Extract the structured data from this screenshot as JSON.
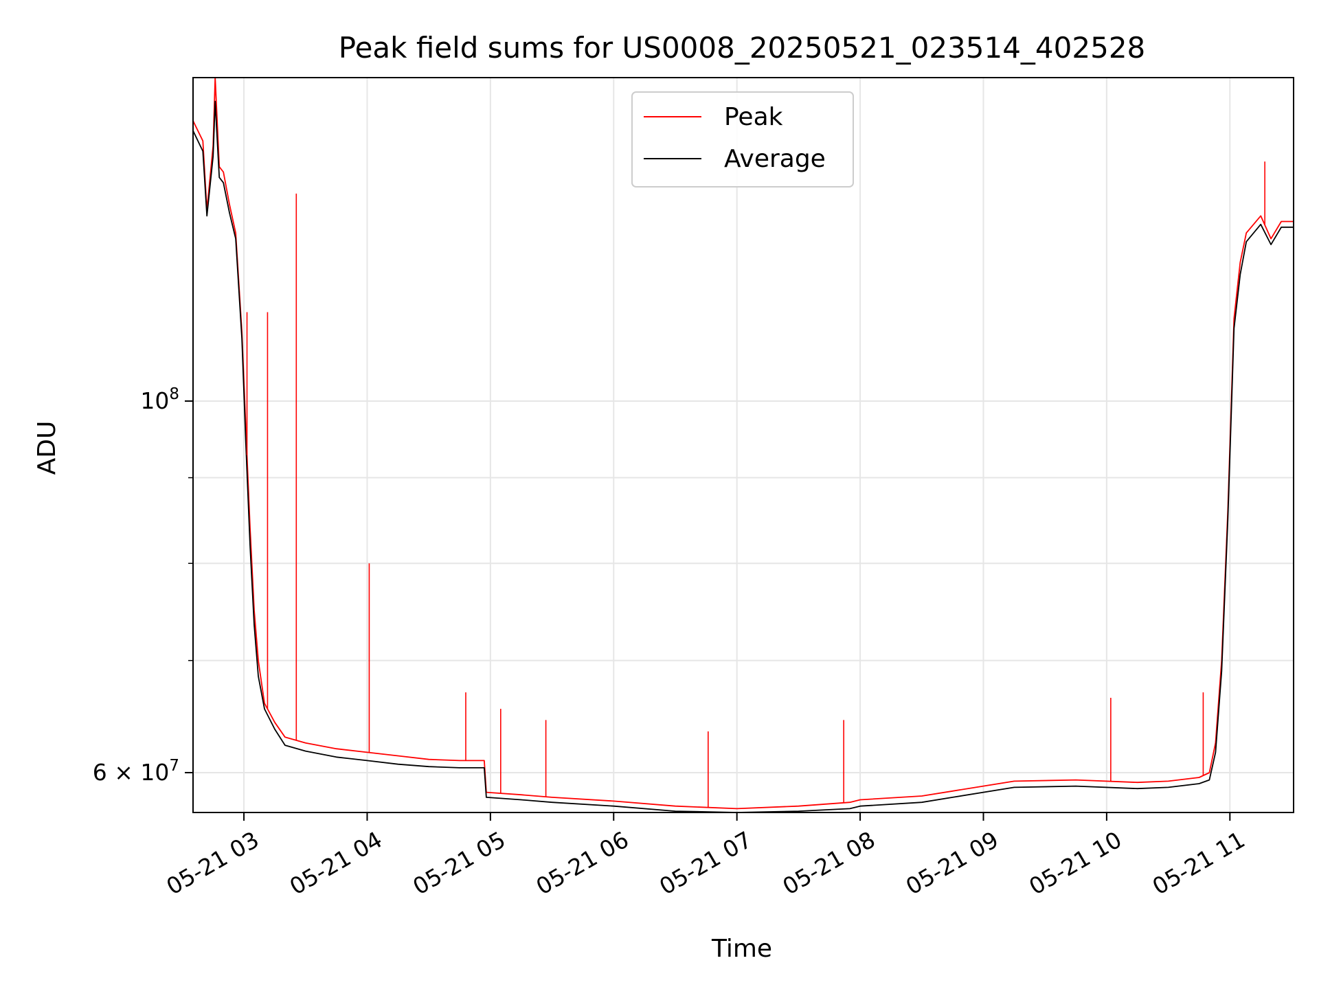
{
  "chart_data": {
    "type": "line",
    "title": "Peak field sums for US0008_20250521_023514_402528",
    "xlabel": "Time",
    "ylabel": "ADU",
    "x_axis_type": "datetime",
    "xlim": [
      "2025-05-21T02:35:14",
      "2025-05-21T11:31:00"
    ],
    "ylim": [
      56800000,
      156000000
    ],
    "yscale": "log",
    "grid": true,
    "legend_position": "top-center",
    "x_tick_labels": [
      {
        "value": "2025-05-21T03:00:00",
        "label": "05-21 03"
      },
      {
        "value": "2025-05-21T04:00:00",
        "label": "05-21 04"
      },
      {
        "value": "2025-05-21T05:00:00",
        "label": "05-21 05"
      },
      {
        "value": "2025-05-21T06:00:00",
        "label": "05-21 06"
      },
      {
        "value": "2025-05-21T07:00:00",
        "label": "05-21 07"
      },
      {
        "value": "2025-05-21T08:00:00",
        "label": "05-21 08"
      },
      {
        "value": "2025-05-21T09:00:00",
        "label": "05-21 09"
      },
      {
        "value": "2025-05-21T10:00:00",
        "label": "05-21 10"
      },
      {
        "value": "2025-05-21T11:00:00",
        "label": "05-21 11"
      }
    ],
    "y_major_ticks": [
      {
        "value": 60000000,
        "mantissa": "6",
        "times": "×",
        "base": "10",
        "exponent": "7"
      },
      {
        "value": 100000000,
        "mantissa": "",
        "times": "",
        "base": "10",
        "exponent": "8"
      }
    ],
    "y_minor_ticks": [
      70000000,
      80000000,
      90000000
    ],
    "series": [
      {
        "name": "Peak",
        "color": "#ff0000",
        "x": [
          "2025-05-21T02:35:14",
          "2025-05-21T02:40:00",
          "2025-05-21T02:42:00",
          "2025-05-21T02:45:00",
          "2025-05-21T02:46:00",
          "2025-05-21T02:48:00",
          "2025-05-21T02:50:00",
          "2025-05-21T02:53:00",
          "2025-05-21T02:56:00",
          "2025-05-21T02:59:00",
          "2025-05-21T03:01:00",
          "2025-05-21T03:03:00",
          "2025-05-21T03:05:00",
          "2025-05-21T03:07:00",
          "2025-05-21T03:10:00",
          "03:15",
          "03:20",
          "03:30",
          "03:45",
          "04:00",
          "04:15",
          "04:30",
          "04:45",
          "04:57",
          "04:58",
          "05:15",
          "05:30",
          "06:00",
          "06:30",
          "07:00",
          "07:30",
          "07:55",
          "08:00",
          "08:30",
          "08:45",
          "09:15",
          "09:45",
          "10:15",
          "10:30",
          "10:45",
          "10:50",
          "10:53",
          "10:56",
          "10:59",
          "11:02",
          "11:05",
          "11:08",
          "11:15",
          "11:20",
          "11:25",
          "11:31"
        ],
        "y": [
          147000000,
          143000000,
          130000000,
          142000000,
          156000000,
          138000000,
          137000000,
          131000000,
          126000000,
          110000000,
          96000000,
          84000000,
          75000000,
          70000000,
          66000000,
          64300000,
          63000000,
          62500000,
          62000000,
          61700000,
          61400000,
          61100000,
          61000000,
          61000000,
          58400000,
          58200000,
          58000000,
          57700000,
          57300000,
          57100000,
          57300000,
          57600000,
          57800000,
          58100000,
          58500000,
          59300000,
          59400000,
          59200000,
          59300000,
          59600000,
          60000000,
          62500000,
          70000000,
          86000000,
          112000000,
          121000000,
          126000000,
          129000000,
          125000000,
          128000000,
          128000000
        ]
      },
      {
        "name": "Average",
        "color": "#000000",
        "x": [
          "2025-05-21T02:35:14",
          "2025-05-21T02:40:00",
          "2025-05-21T02:42:00",
          "2025-05-21T02:45:00",
          "2025-05-21T02:46:00",
          "2025-05-21T02:48:00",
          "2025-05-21T02:50:00",
          "2025-05-21T02:53:00",
          "2025-05-21T02:56:00",
          "2025-05-21T02:59:00",
          "2025-05-21T03:01:00",
          "2025-05-21T03:03:00",
          "2025-05-21T03:05:00",
          "2025-05-21T03:07:00",
          "2025-05-21T03:10:00",
          "03:15",
          "03:20",
          "03:30",
          "03:45",
          "04:00",
          "04:15",
          "04:30",
          "04:45",
          "04:57",
          "04:58",
          "05:15",
          "05:30",
          "06:00",
          "06:30",
          "07:00",
          "07:30",
          "07:55",
          "08:00",
          "08:30",
          "08:45",
          "09:15",
          "09:45",
          "10:15",
          "10:30",
          "10:45",
          "10:50",
          "10:53",
          "10:56",
          "10:59",
          "11:02",
          "11:05",
          "11:08",
          "11:15",
          "11:20",
          "11:25",
          "11:31"
        ],
        "y": [
          145000000,
          141000000,
          129000000,
          140000000,
          151000000,
          136000000,
          135000000,
          129500000,
          125000000,
          109000000,
          94000000,
          82000000,
          73500000,
          68500000,
          65500000,
          63700000,
          62300000,
          61800000,
          61300000,
          61000000,
          60700000,
          60500000,
          60400000,
          60400000,
          58000000,
          57800000,
          57600000,
          57300000,
          56900000,
          56800000,
          56900000,
          57100000,
          57300000,
          57600000,
          58000000,
          58800000,
          58900000,
          58700000,
          58800000,
          59100000,
          59400000,
          61700000,
          69000000,
          85000000,
          110500000,
          119000000,
          124500000,
          127500000,
          124000000,
          127000000,
          127000000
        ]
      }
    ],
    "spikes": [
      {
        "series": "Peak",
        "x": "2025-05-21T03:01:30",
        "y": 113000000
      },
      {
        "series": "Peak",
        "x": "2025-05-21T03:11:30",
        "y": 113000000
      },
      {
        "series": "Peak",
        "x": "2025-05-21T03:25:30",
        "y": 133000000
      },
      {
        "series": "Peak",
        "x": "2025-05-21T04:01:00",
        "y": 80000000
      },
      {
        "series": "Peak",
        "x": "2025-05-21T04:48:00",
        "y": 67000000
      },
      {
        "series": "Peak",
        "x": "2025-05-21T05:05:00",
        "y": 65500000
      },
      {
        "series": "Peak",
        "x": "2025-05-21T05:27:00",
        "y": 64500000
      },
      {
        "series": "Peak",
        "x": "2025-05-21T06:46:00",
        "y": 63500000
      },
      {
        "series": "Peak",
        "x": "2025-05-21T07:52:00",
        "y": 64500000
      },
      {
        "series": "Peak",
        "x": "2025-05-21T10:02:00",
        "y": 66500000
      },
      {
        "series": "Peak",
        "x": "2025-05-21T10:47:00",
        "y": 67000000
      },
      {
        "series": "Peak",
        "x": "2025-05-21T11:17:00",
        "y": 139000000
      }
    ]
  }
}
